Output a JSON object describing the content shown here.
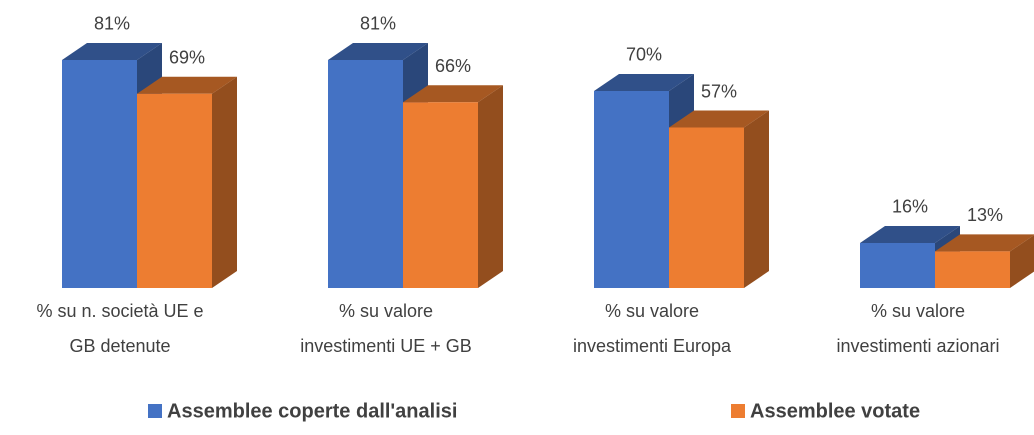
{
  "chart_data": {
    "type": "bar3d",
    "categories": [
      [
        "% su n. società UE e",
        "GB detenute"
      ],
      [
        "% su valore",
        "investimenti UE + GB"
      ],
      [
        "% su valore",
        "investimenti Europa"
      ],
      [
        "% su valore",
        "investimenti azionari"
      ]
    ],
    "series": [
      {
        "name": "Assemblee coperte dall'analisi",
        "color": "#4472c4",
        "values": [
          81,
          81,
          70,
          16
        ],
        "value_labels": [
          "81%",
          "81%",
          "70%",
          "16%"
        ]
      },
      {
        "name": "Assemblee votate",
        "color": "#ed7d31",
        "values": [
          69,
          66,
          57,
          13
        ],
        "value_labels": [
          "69%",
          "66%",
          "57%",
          "13%"
        ]
      }
    ],
    "legend": "bottom"
  }
}
